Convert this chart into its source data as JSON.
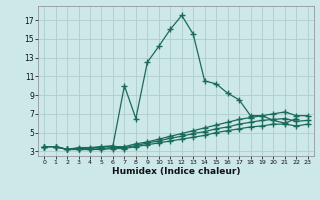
{
  "xlabel": "Humidex (Indice chaleur)",
  "ylabel": "",
  "bg_color": "#cce8e8",
  "grid_color": "#b0cccc",
  "line_color": "#1a6a5a",
  "xlim": [
    -0.5,
    23.5
  ],
  "ylim": [
    2.5,
    18.5
  ],
  "xticks": [
    0,
    1,
    2,
    3,
    4,
    5,
    6,
    7,
    8,
    9,
    10,
    11,
    12,
    13,
    14,
    15,
    16,
    17,
    18,
    19,
    20,
    21,
    22,
    23
  ],
  "yticks": [
    3,
    5,
    7,
    9,
    11,
    13,
    15,
    17
  ],
  "lines": [
    {
      "x": [
        0,
        1,
        2,
        3,
        4,
        5,
        6,
        7,
        8,
        9,
        10,
        11,
        12,
        13,
        14,
        15,
        16,
        17,
        18,
        19,
        20,
        21,
        22,
        23
      ],
      "y": [
        3.5,
        3.5,
        3.2,
        3.4,
        3.4,
        3.5,
        3.6,
        10.0,
        6.5,
        12.5,
        14.2,
        16.0,
        17.5,
        15.5,
        10.5,
        10.2,
        9.2,
        8.5,
        6.8,
        6.8,
        6.3,
        6.0,
        6.5,
        null
      ]
    },
    {
      "x": [
        0,
        1,
        2,
        3,
        4,
        5,
        6,
        7,
        8,
        9,
        10,
        11,
        12,
        13,
        14,
        15,
        16,
        17,
        18,
        19,
        20,
        21,
        22,
        23
      ],
      "y": [
        3.5,
        3.5,
        3.2,
        3.3,
        3.3,
        3.5,
        3.5,
        3.5,
        3.8,
        4.0,
        4.3,
        4.6,
        4.9,
        5.2,
        5.5,
        5.8,
        6.1,
        6.4,
        6.6,
        6.8,
        7.0,
        7.2,
        6.8,
        6.8
      ]
    },
    {
      "x": [
        0,
        1,
        2,
        3,
        4,
        5,
        6,
        7,
        8,
        9,
        10,
        11,
        12,
        13,
        14,
        15,
        16,
        17,
        18,
        19,
        20,
        21,
        22,
        23
      ],
      "y": [
        3.5,
        3.5,
        3.2,
        3.2,
        3.2,
        3.3,
        3.4,
        3.4,
        3.6,
        3.9,
        4.1,
        4.4,
        4.6,
        4.9,
        5.1,
        5.4,
        5.6,
        5.9,
        6.1,
        6.3,
        6.4,
        6.5,
        6.2,
        6.3
      ]
    },
    {
      "x": [
        0,
        1,
        2,
        3,
        4,
        5,
        6,
        7,
        8,
        9,
        10,
        11,
        12,
        13,
        14,
        15,
        16,
        17,
        18,
        19,
        20,
        21,
        22,
        23
      ],
      "y": [
        3.5,
        3.5,
        3.2,
        3.2,
        3.2,
        3.2,
        3.3,
        3.3,
        3.5,
        3.7,
        3.9,
        4.1,
        4.3,
        4.5,
        4.7,
        5.0,
        5.2,
        5.4,
        5.6,
        5.7,
        5.9,
        5.9,
        5.7,
        5.9
      ]
    }
  ]
}
